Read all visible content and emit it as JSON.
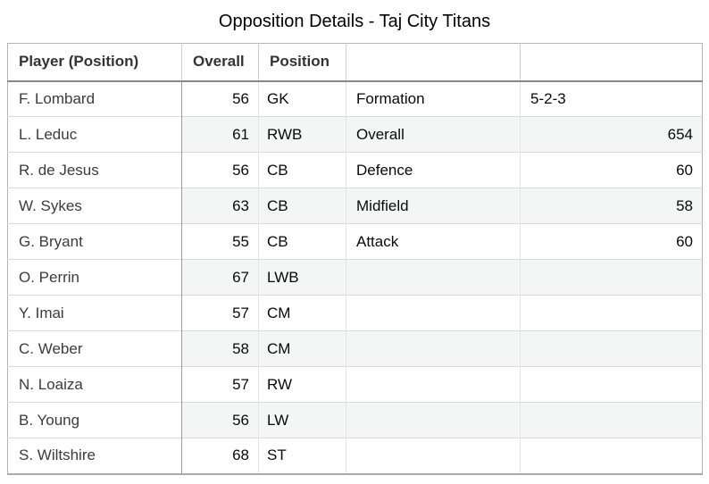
{
  "title": "Opposition Details - Taj City Titans",
  "table": {
    "headers": [
      "Player (Position)",
      "Overall",
      "Position",
      "",
      ""
    ],
    "players": [
      {
        "name": "F. Lombard",
        "overall": "56",
        "position": "GK"
      },
      {
        "name": "L. Leduc",
        "overall": "61",
        "position": "RWB"
      },
      {
        "name": "R. de Jesus",
        "overall": "56",
        "position": "CB"
      },
      {
        "name": "W. Sykes",
        "overall": "63",
        "position": "CB"
      },
      {
        "name": "G. Bryant",
        "overall": "55",
        "position": "CB"
      },
      {
        "name": "O. Perrin",
        "overall": "67",
        "position": "LWB"
      },
      {
        "name": "Y. Imai",
        "overall": "57",
        "position": "CM"
      },
      {
        "name": "C. Weber",
        "overall": "58",
        "position": "CM"
      },
      {
        "name": "N. Loaiza",
        "overall": "57",
        "position": "RW"
      },
      {
        "name": "B. Young",
        "overall": "56",
        "position": "LW"
      },
      {
        "name": "S. Wiltshire",
        "overall": "68",
        "position": "ST"
      }
    ],
    "team_stats": [
      {
        "label": "Formation",
        "value": "5-2-3"
      },
      {
        "label": "Overall",
        "value": "654"
      },
      {
        "label": "Defence",
        "value": "60"
      },
      {
        "label": "Midfield",
        "value": "58"
      },
      {
        "label": "Attack",
        "value": "60"
      }
    ]
  },
  "colors": {
    "stripe": "#f3f6f4",
    "header_divider": "#8b8680"
  }
}
